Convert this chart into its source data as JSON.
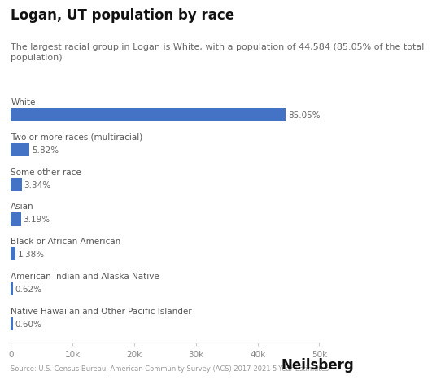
{
  "title": "Logan, UT population by race",
  "subtitle": "The largest racial group in Logan is White, with a population of 44,584 (85.05% of the total\npopulation)",
  "categories": [
    "White",
    "Two or more races (multiracial)",
    "Some other race",
    "Asian",
    "Black or African American",
    "American Indian and Alaska Native",
    "Native Hawaiian and Other Pacific Islander"
  ],
  "values": [
    44584,
    3049,
    1751,
    1672,
    723,
    325,
    315
  ],
  "percentages": [
    "85.05%",
    "5.82%",
    "3.34%",
    "3.19%",
    "1.38%",
    "0.62%",
    "0.60%"
  ],
  "bar_color": "#4472C4",
  "xlim": [
    0,
    50000
  ],
  "xticks": [
    0,
    10000,
    20000,
    30000,
    40000,
    50000
  ],
  "xtick_labels": [
    "0",
    "10k",
    "20k",
    "30k",
    "40k",
    "50k"
  ],
  "source_text": "Source: U.S. Census Bureau, American Community Survey (ACS) 2017-2021 5-Year Estimates",
  "brand_text": "Neilsberg",
  "background_color": "#ffffff",
  "title_fontsize": 12,
  "subtitle_fontsize": 8,
  "category_fontsize": 7.5,
  "pct_fontsize": 7.5,
  "tick_fontsize": 7.5,
  "source_fontsize": 6,
  "brand_fontsize": 12
}
